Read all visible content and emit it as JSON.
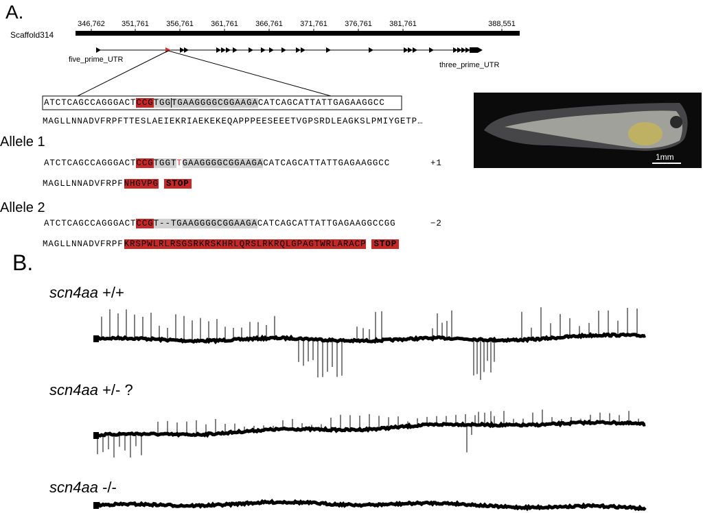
{
  "panel_a": {
    "label": "A.",
    "scaffold": "Scaffold314",
    "coordinates": [
      "346,762",
      "351,761",
      "356,761",
      "361,761",
      "366,761",
      "371,761",
      "376,761",
      "381,761",
      "388,551"
    ],
    "five_prime": "five_prime_UTR",
    "three_prime": "three_prime_UTR",
    "wildtype": {
      "sequence": [
        "ATCTCAGCCAGGGACT",
        "CCG",
        "TGG",
        "TGAAGGGGCGGAAGA",
        "CATCAGCATTATTGAGAAGGCC"
      ],
      "protein": "MAGLLNNADVFRPFTTESLAEIEKRIAEKEKEQAPPPEESEEETVGPSRDLEAGKSLPMIYGETP…"
    },
    "alleles": [
      {
        "name": "Allele 1",
        "sequence": [
          "ATCTCAGCCAGGGACT",
          "CCG",
          "TGGT",
          "T",
          "GAAGGGGCGGAAGA",
          "CATCAGCATTATTGAGAAGGCC"
        ],
        "change": "+1",
        "protein": [
          "MAGLLNNADVFRPF",
          "NHGVPG",
          "STOP"
        ]
      },
      {
        "name": "Allele 2",
        "sequence": [
          "ATCTCAGCCAGGGACT",
          "CCG",
          "T--",
          "TGAAGGGGCGGAAGA",
          "CATCAGCATTATTGAGAAGGCCGG"
        ],
        "change": "−2",
        "protein": [
          "MAGLLNNADVFRPF",
          "KRSPWLRLRSGSRKRSKHRLQRSLRKRQLGPAGTWRLARACP",
          "STOP"
        ]
      }
    ],
    "scale_bar": "1mm"
  },
  "panel_b": {
    "label": "B.",
    "traces": [
      {
        "gene": "scn4aa",
        "genotype": " +/+"
      },
      {
        "gene": "scn4aa",
        "genotype": " +/- ?"
      },
      {
        "gene": "scn4aa",
        "genotype": " -/-"
      }
    ]
  }
}
